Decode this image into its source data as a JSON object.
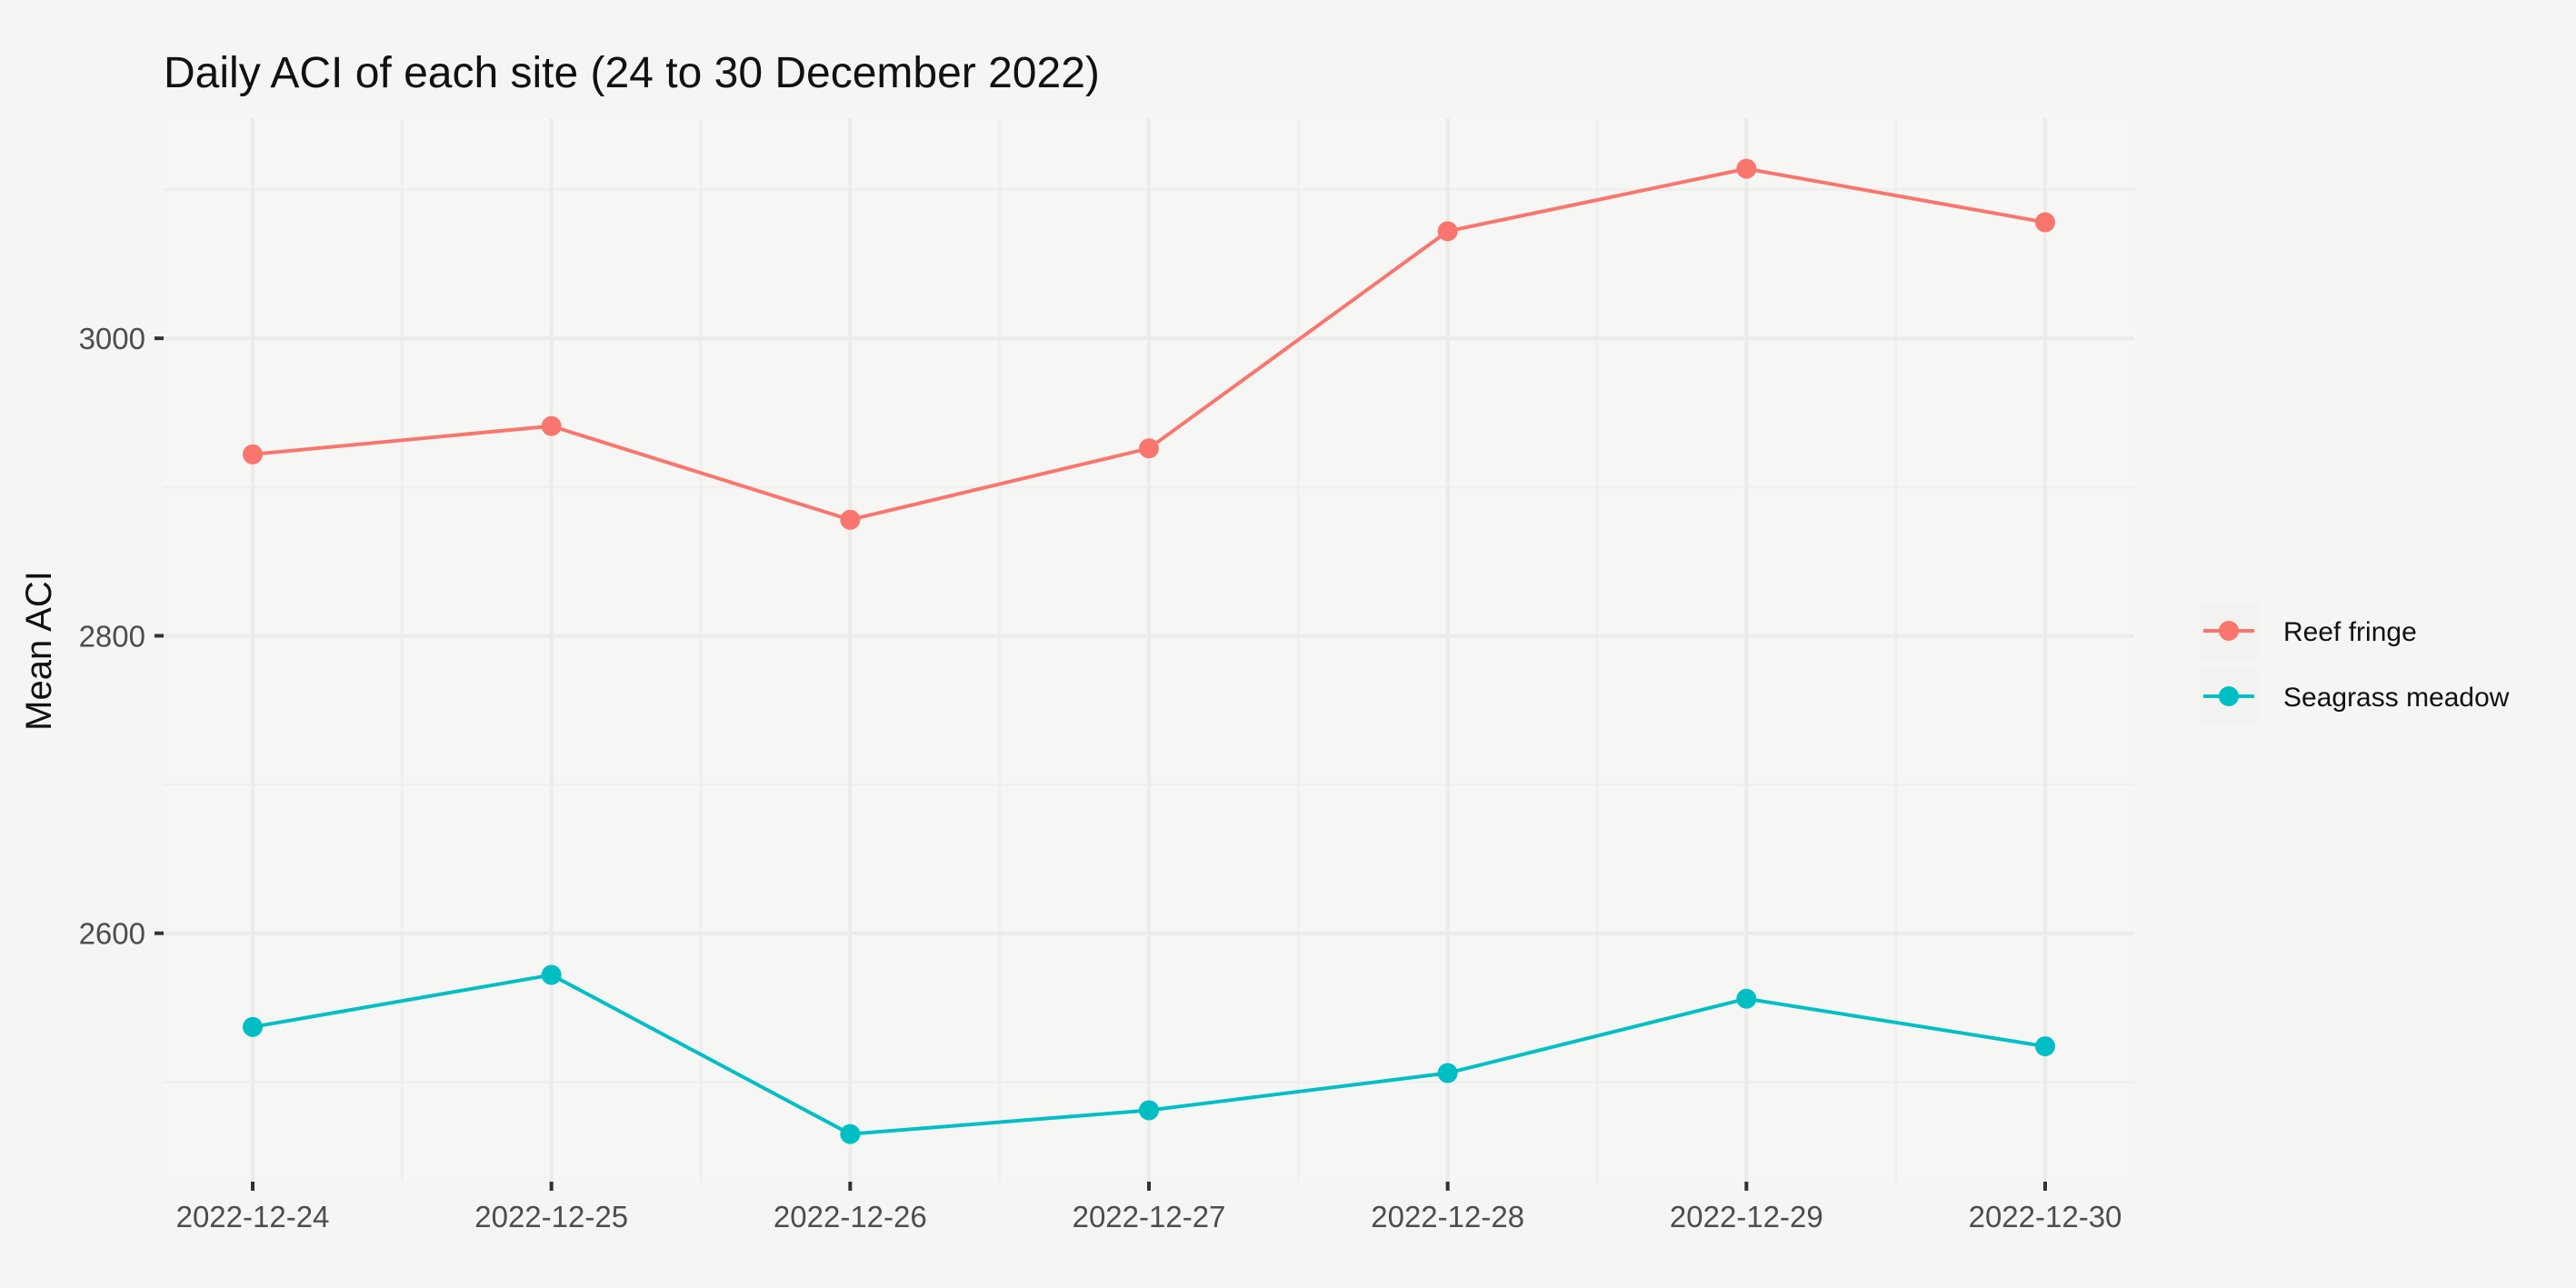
{
  "chart_data": {
    "type": "line",
    "title": "Daily ACI of each site (24 to 30 December 2022)",
    "xlabel": "",
    "ylabel": "Mean ACI",
    "x": [
      "2022-12-24",
      "2022-12-25",
      "2022-12-26",
      "2022-12-27",
      "2022-12-28",
      "2022-12-29",
      "2022-12-30"
    ],
    "ylim": [
      2433,
      3148
    ],
    "yticks": [
      2600,
      2800,
      3000
    ],
    "grid": true,
    "legend_position": "right",
    "series": [
      {
        "name": "Reef fringe",
        "color": "#f8766d",
        "values": [
          2922,
          2941,
          2878,
          2926,
          3072,
          3114,
          3078
        ]
      },
      {
        "name": "Seagrass meadow",
        "color": "#00bfc4",
        "values": [
          2537,
          2572,
          2465,
          2481,
          2506,
          2556,
          2524
        ]
      }
    ]
  }
}
